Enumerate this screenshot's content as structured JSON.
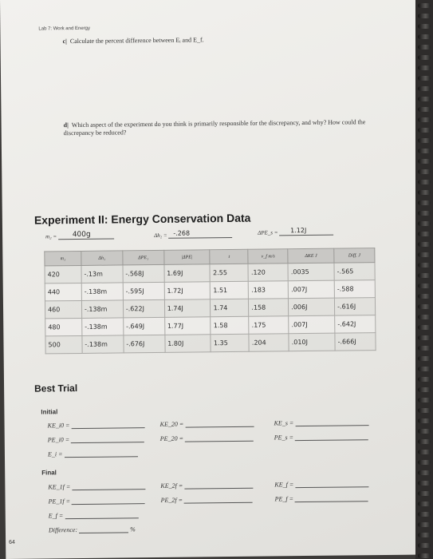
{
  "header": {
    "title": "Lab 7: Work and Energy"
  },
  "questions": {
    "c": {
      "letter": "c|",
      "text": "Calculate the percent difference between Eᵢ and E_f."
    },
    "d": {
      "letter": "d|",
      "text": "Which aspect of the experiment do you think is primarily responsible for the discrepancy, and why? How could the discrepancy be reduced?"
    }
  },
  "experiment": {
    "title": "Experiment II: Energy Conservation Data",
    "m2_label": "m₂ =",
    "m2_value": "400g",
    "dh_label": "Δh₂ =",
    "dh_value": "-.268",
    "dpe_label": "ΔPE_s =",
    "dpe_value": "1.12J"
  },
  "table": {
    "headers": [
      "m₁",
      "Δh₁",
      "ΔPE₁",
      "|ΔPE|",
      "t",
      "v_f m/s",
      "ΔKE J",
      "Diff. J"
    ],
    "rows": [
      [
        "420",
        "-.13m",
        "-.568J",
        "1.69J",
        "2.55",
        ".120",
        ".0035",
        "-.565"
      ],
      [
        "440",
        "-.138m",
        "-.595J",
        "1.72J",
        "1.51",
        ".183",
        ".007J",
        "-.588"
      ],
      [
        "460",
        "-.138m",
        "-.622J",
        "1.74J",
        "1.74",
        ".158",
        ".006J",
        "-.616J"
      ],
      [
        "480",
        "-.138m",
        "-.649J",
        "1.77J",
        "1.58",
        ".175",
        ".007J",
        "-.642J"
      ],
      [
        "500",
        "-.138m",
        "-.676J",
        "1.80J",
        "1.35",
        ".204",
        ".010J",
        "-.666J"
      ]
    ]
  },
  "best_trial": {
    "title": "Best Trial",
    "initial": {
      "label": "Initial",
      "col1": [
        "KE_i0 =",
        "PE_i0 =",
        "E_i ="
      ],
      "col2": [
        "KE_20 =",
        "PE_20 ="
      ],
      "col3": [
        "KE_s =",
        "PE_s ="
      ]
    },
    "final": {
      "label": "Final",
      "col1": [
        "KE_1f =",
        "PE_1f =",
        "E_f ="
      ],
      "col2": [
        "KE_2f =",
        "PE_2f ="
      ],
      "col3": [
        "KE_f =",
        "PE_f ="
      ],
      "difference_label": "Difference:",
      "difference_unit": "%"
    }
  },
  "page_number": "64"
}
